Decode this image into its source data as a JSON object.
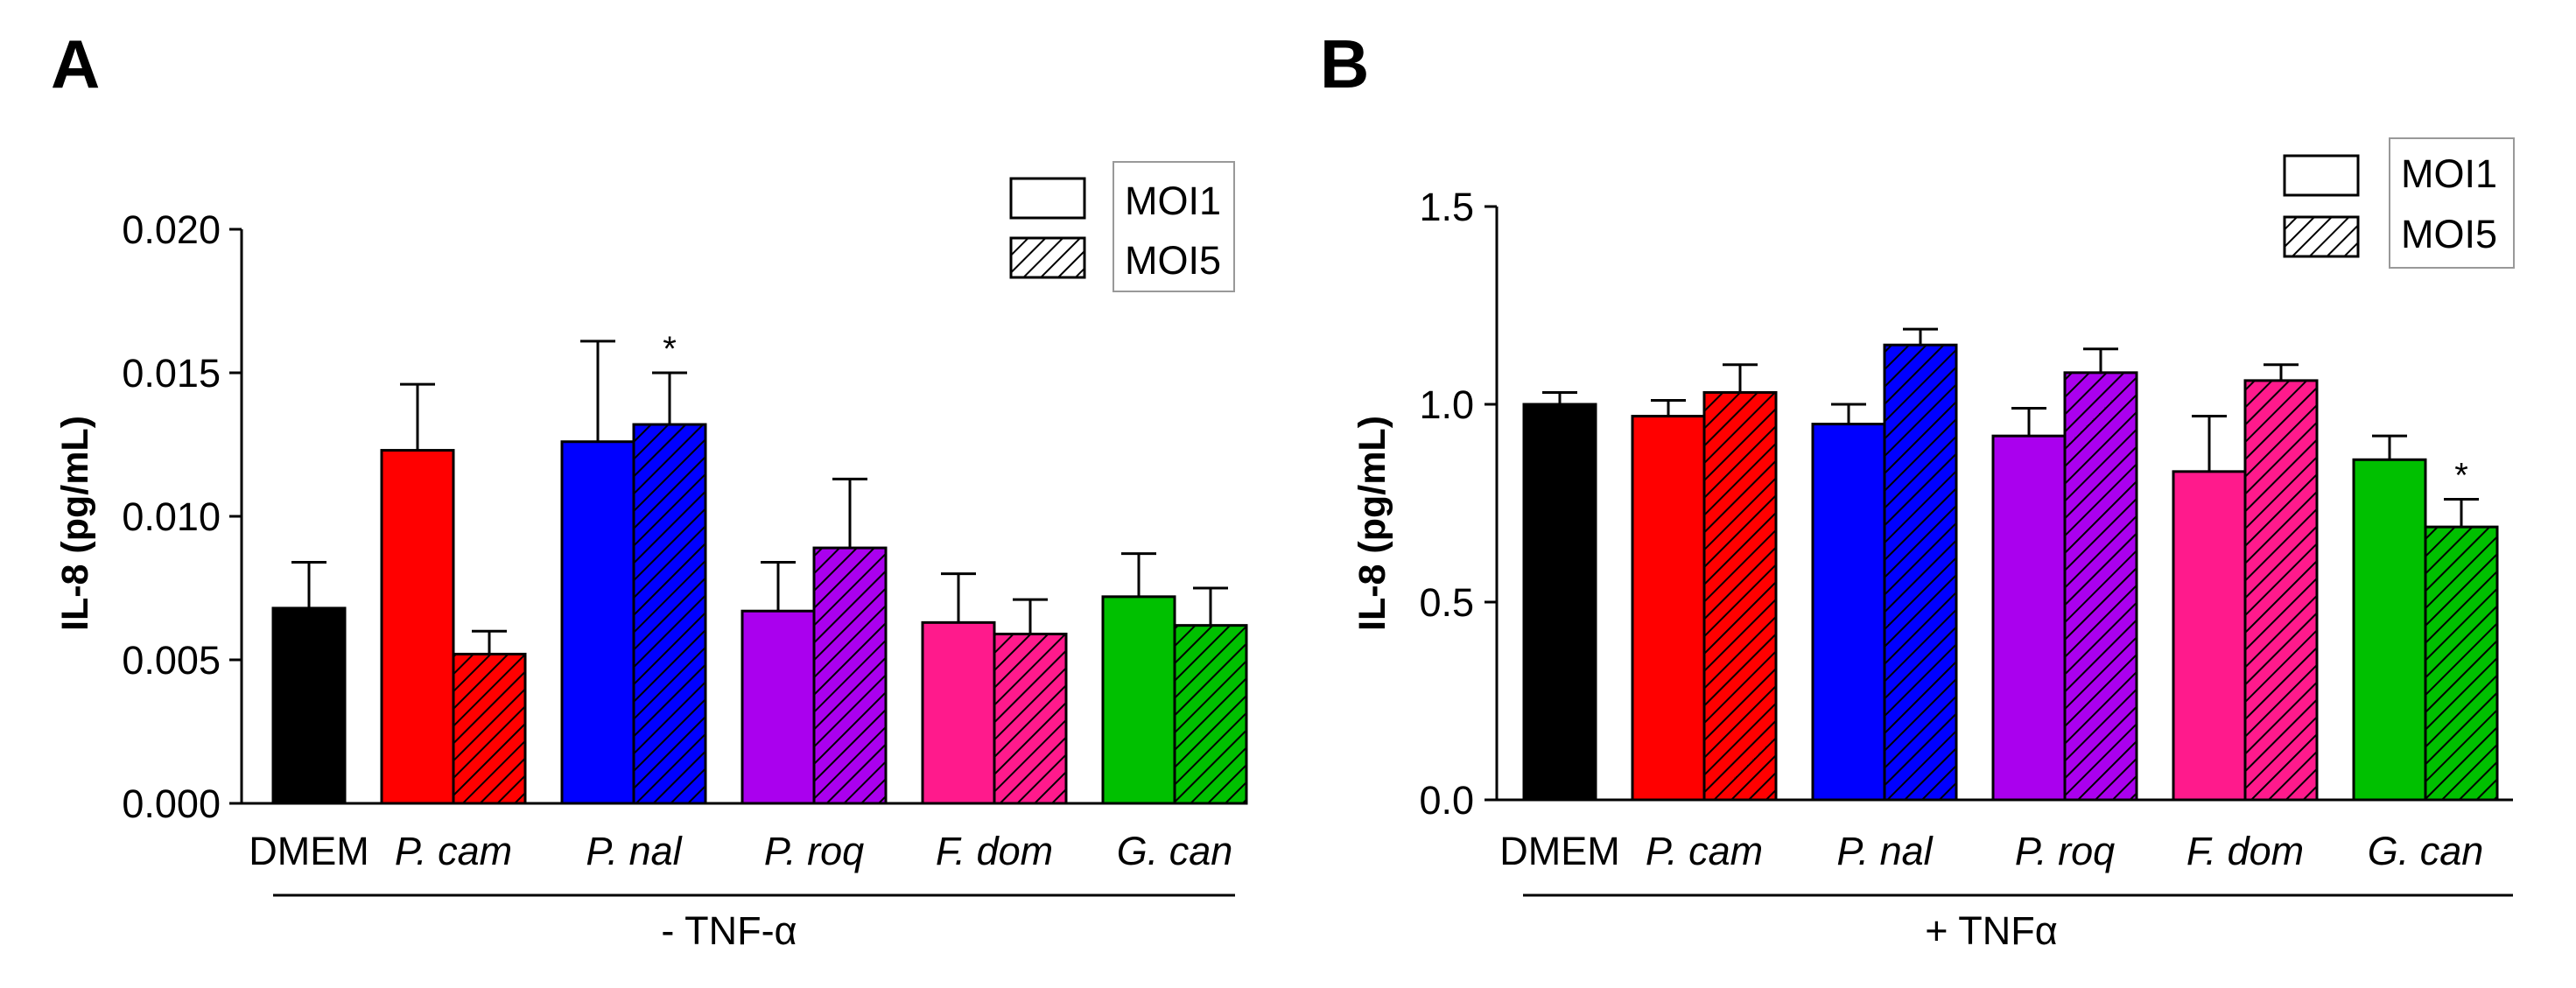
{
  "colors": {
    "DMEM": "#000000",
    "P. cam": "#ff0000",
    "P. nal": "#0000ff",
    "P. roq": "#aa00ee",
    "F. dom": "#ff1a8c",
    "G. can": "#00c000"
  },
  "chart_data": [
    {
      "type": "bar",
      "panel_label": "A",
      "ylabel": "IL-8 (pg/mL)",
      "group_label": "- TNF-α",
      "ylim": [
        0,
        0.02
      ],
      "yticks": [
        "0.000",
        "0.005",
        "0.010",
        "0.015",
        "0.020"
      ],
      "ytick_values": [
        0,
        0.005,
        0.01,
        0.015,
        0.02
      ],
      "categories": [
        "DMEM",
        "P. cam",
        "P. nal",
        "P. roq",
        "F. dom",
        "G. can"
      ],
      "legend": [
        "MOI1",
        "MOI5"
      ],
      "legend_position": "top-right",
      "bars": [
        {
          "category": "DMEM",
          "series": "control",
          "value": 0.0068,
          "error": 0.0016
        },
        {
          "category": "P. cam",
          "series": "MOI1",
          "value": 0.0123,
          "error": 0.0023
        },
        {
          "category": "P. cam",
          "series": "MOI5",
          "value": 0.0052,
          "error": 0.0008
        },
        {
          "category": "P. nal",
          "series": "MOI1",
          "value": 0.0126,
          "error": 0.0035
        },
        {
          "category": "P. nal",
          "series": "MOI5",
          "value": 0.0132,
          "error": 0.0018,
          "annotation": "*"
        },
        {
          "category": "P. roq",
          "series": "MOI1",
          "value": 0.0067,
          "error": 0.0017
        },
        {
          "category": "P. roq",
          "series": "MOI5",
          "value": 0.0089,
          "error": 0.0024
        },
        {
          "category": "F. dom",
          "series": "MOI1",
          "value": 0.0063,
          "error": 0.0017
        },
        {
          "category": "F. dom",
          "series": "MOI5",
          "value": 0.0059,
          "error": 0.0012
        },
        {
          "category": "G. can",
          "series": "MOI1",
          "value": 0.0072,
          "error": 0.0015
        },
        {
          "category": "G. can",
          "series": "MOI5",
          "value": 0.0062,
          "error": 0.0013
        }
      ]
    },
    {
      "type": "bar",
      "panel_label": "B",
      "ylabel": "IL-8 (pg/mL)",
      "group_label": "+ TNFα",
      "ylim": [
        0,
        1.5
      ],
      "yticks": [
        "0.0",
        "0.5",
        "1.0",
        "1.5"
      ],
      "ytick_values": [
        0,
        0.5,
        1.0,
        1.5
      ],
      "categories": [
        "DMEM",
        "P. cam",
        "P. nal",
        "P. roq",
        "F. dom",
        "G. can"
      ],
      "legend": [
        "MOI1",
        "MOI5"
      ],
      "legend_position": "top-right",
      "bars": [
        {
          "category": "DMEM",
          "series": "control",
          "value": 1.0,
          "error": 0.03
        },
        {
          "category": "P. cam",
          "series": "MOI1",
          "value": 0.97,
          "error": 0.04
        },
        {
          "category": "P. cam",
          "series": "MOI5",
          "value": 1.03,
          "error": 0.07
        },
        {
          "category": "P. nal",
          "series": "MOI1",
          "value": 0.95,
          "error": 0.05
        },
        {
          "category": "P. nal",
          "series": "MOI5",
          "value": 1.15,
          "error": 0.04
        },
        {
          "category": "P. roq",
          "series": "MOI1",
          "value": 0.92,
          "error": 0.07
        },
        {
          "category": "P. roq",
          "series": "MOI5",
          "value": 1.08,
          "error": 0.06
        },
        {
          "category": "F. dom",
          "series": "MOI1",
          "value": 0.83,
          "error": 0.14
        },
        {
          "category": "F. dom",
          "series": "MOI5",
          "value": 1.06,
          "error": 0.04
        },
        {
          "category": "G. can",
          "series": "MOI1",
          "value": 0.86,
          "error": 0.06
        },
        {
          "category": "G. can",
          "series": "MOI5",
          "value": 0.69,
          "error": 0.07,
          "annotation": "*"
        }
      ]
    }
  ]
}
